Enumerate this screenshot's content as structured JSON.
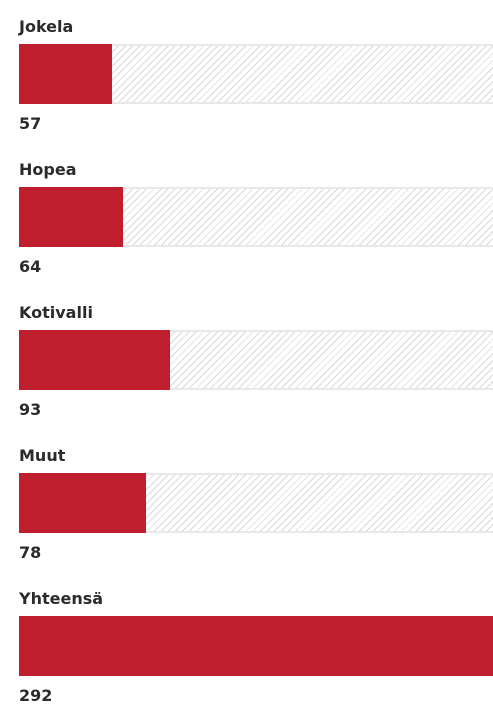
{
  "chart_data": {
    "type": "bar",
    "orientation": "horizontal",
    "categories": [
      "Jokela",
      "Hopea",
      "Kotivalli",
      "Muut",
      "Yhteensä"
    ],
    "values": [
      57,
      64,
      93,
      78,
      292
    ],
    "value_labels": [
      "57",
      "64",
      "93",
      "78",
      "292"
    ],
    "xlim": [
      0,
      292
    ],
    "bar_color": "#be1e2d",
    "track_pattern": "diagonal-hatch",
    "track_color": "#d9d9d9",
    "grid": false,
    "legend": "none"
  }
}
